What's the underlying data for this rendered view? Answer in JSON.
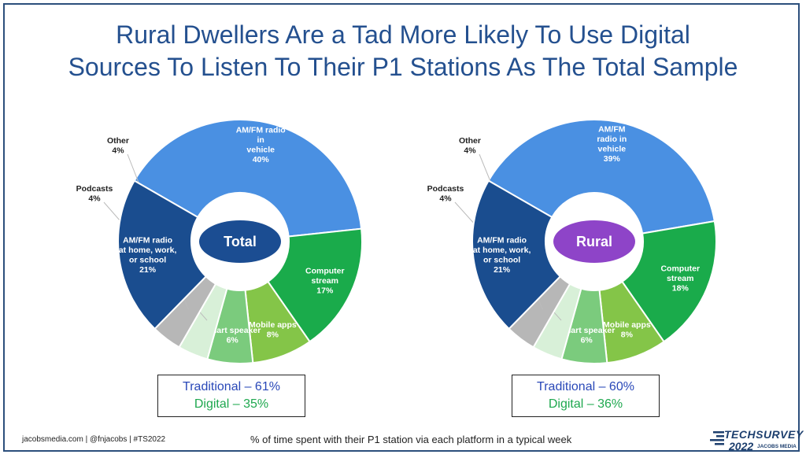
{
  "title_lines": [
    "Rural Dwellers Are a Tad More Likely To Use Digital",
    "Sources To Listen To Their P1 Stations As The Total Sample"
  ],
  "colors": {
    "title": "#24508f",
    "am_fm_home": "#1a4d8f",
    "am_fm_vehicle": "#4a90e2",
    "computer_stream": "#1aab4b",
    "mobile_apps": "#84c548",
    "smart_speaker": "#7bcb7d",
    "podcasts": "#d8f0d8",
    "other": "#b7b7b7",
    "traditional_text": "#2948b8",
    "digital_text": "#1fa84f",
    "total_center": "#1b4d92",
    "rural_center": "#8e44c8"
  },
  "chart_data": [
    {
      "type": "pie",
      "center_label": "Total",
      "slices": [
        {
          "label": [
            "AM/FM radio",
            "in",
            "vehicle"
          ],
          "value": 40,
          "value_text": "40%"
        },
        {
          "label": [
            "Computer",
            "stream"
          ],
          "value": 17,
          "value_text": "17%"
        },
        {
          "label": [
            "Mobile apps"
          ],
          "value": 8,
          "value_text": "8%"
        },
        {
          "label": [
            "Smart speaker"
          ],
          "value": 6,
          "value_text": "6%"
        },
        {
          "label": [
            "Podcasts"
          ],
          "value": 4,
          "value_text": "4%"
        },
        {
          "label": [
            "Other"
          ],
          "value": 4,
          "value_text": "4%"
        },
        {
          "label": [
            "AM/FM radio",
            "at home, work,",
            "or school"
          ],
          "value": 21,
          "value_text": "21%"
        }
      ],
      "summary": {
        "traditional": "Traditional – 61%",
        "digital": "Digital – 35%"
      }
    },
    {
      "type": "pie",
      "center_label": "Rural",
      "slices": [
        {
          "label": [
            "AM/FM",
            "radio in",
            "vehicle"
          ],
          "value": 39,
          "value_text": "39%"
        },
        {
          "label": [
            "Computer",
            "stream"
          ],
          "value": 18,
          "value_text": "18%"
        },
        {
          "label": [
            "Mobile apps"
          ],
          "value": 8,
          "value_text": "8%"
        },
        {
          "label": [
            "Smart speaker"
          ],
          "value": 6,
          "value_text": "6%"
        },
        {
          "label": [
            "Podcasts"
          ],
          "value": 4,
          "value_text": "4%"
        },
        {
          "label": [
            "Other"
          ],
          "value": 4,
          "value_text": "4%"
        },
        {
          "label": [
            "AM/FM radio",
            "at home, work,",
            "or school"
          ],
          "value": 21,
          "value_text": "21%"
        }
      ],
      "summary": {
        "traditional": "Traditional – 60%",
        "digital": "Digital – 36%"
      }
    }
  ],
  "footer": {
    "left": "jacobsmedia.com  |  @fnjacobs  |  #TS2022",
    "caption": "% of time spent with their P1 station via each platform in a typical week",
    "logo_top": "TECHSURVEY",
    "logo_year": "2022",
    "logo_brand": "JACOBS MEDIA"
  }
}
